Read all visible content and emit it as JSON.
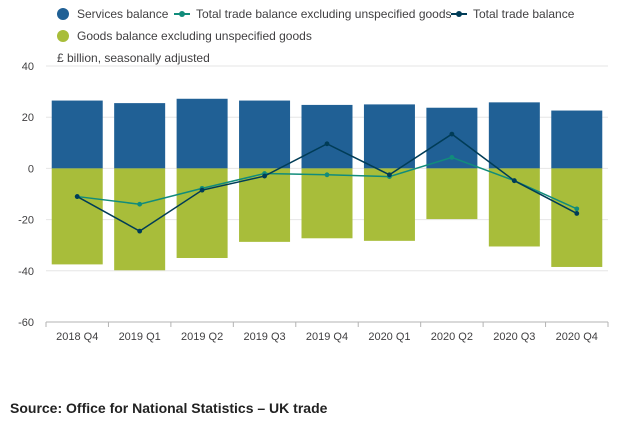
{
  "chart_data": {
    "type": "bar",
    "ylabel": "£ billion, seasonally adjusted",
    "ylim": [
      -60,
      40
    ],
    "yticks": [
      40,
      20,
      0,
      -20,
      -40,
      -60
    ],
    "categories": [
      "2018 Q4",
      "2019 Q1",
      "2019 Q2",
      "2019 Q3",
      "2019 Q4",
      "2020 Q1",
      "2020 Q2",
      "2020 Q3",
      "2020 Q4"
    ],
    "series": [
      {
        "name": "Services balance",
        "kind": "bar",
        "color": "#206095",
        "values": [
          26.5,
          25.5,
          27.2,
          26.5,
          24.8,
          25.0,
          23.7,
          25.8,
          22.6
        ]
      },
      {
        "name": "Goods balance excluding unspecified goods",
        "kind": "bar",
        "color": "#a8bd3a",
        "values": [
          -37.5,
          -39.8,
          -35.0,
          -28.7,
          -27.3,
          -28.3,
          -19.8,
          -30.5,
          -38.5
        ]
      },
      {
        "name": "Total trade balance excluding unspecified goods",
        "kind": "line",
        "color": "#118c7b",
        "values": [
          -11.0,
          -14.0,
          -7.8,
          -2.0,
          -2.5,
          -3.2,
          4.3,
          -4.8,
          -15.8
        ]
      },
      {
        "name": "Total trade balance",
        "kind": "line",
        "color": "#003c57",
        "values": [
          -11.0,
          -24.5,
          -8.5,
          -3.0,
          9.6,
          -2.5,
          13.4,
          -4.8,
          -17.6
        ]
      }
    ]
  },
  "legend": {
    "services": "Services balance",
    "total_excl": "Total trade balance excluding unspecified goods",
    "total": "Total trade balance",
    "goods": "Goods balance excluding unspecified goods"
  },
  "colors": {
    "services": "#206095",
    "goods": "#a8bd3a",
    "total_excl": "#118c7b",
    "total": "#003c57"
  },
  "source": "Source: Office for National Statistics – UK trade"
}
